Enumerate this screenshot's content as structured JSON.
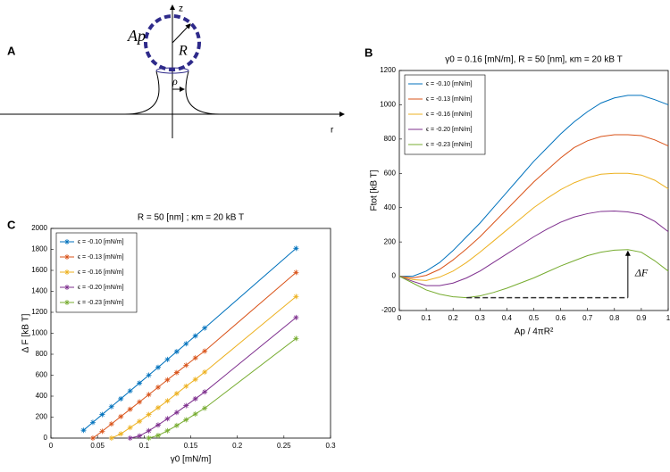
{
  "panel_a": {
    "label": "A",
    "z_axis": "z",
    "r_axis": "r",
    "area": "Ap",
    "radius": "R",
    "neck": "ρ"
  },
  "chart_data": [
    {
      "type": "line",
      "panel_label": "B",
      "title": "γ0 = 0.16 [mN/m], R = 50 [nm],  κm =  20 kB T",
      "x_label": "Ap / 4πR²",
      "y_label": "Ftot [kB T]",
      "x": [
        0,
        0.05,
        0.1,
        0.15,
        0.2,
        0.25,
        0.3,
        0.35,
        0.4,
        0.45,
        0.5,
        0.55,
        0.6,
        0.65,
        0.7,
        0.75,
        0.8,
        0.85,
        0.9,
        0.95,
        1
      ],
      "xlim": [
        0,
        1
      ],
      "xticks": [
        0,
        0.1,
        0.2,
        0.3,
        0.4,
        0.5,
        0.6,
        0.7,
        0.8,
        0.9,
        1
      ],
      "ylim": [
        -200,
        1200
      ],
      "yticks": [
        -200,
        0,
        200,
        400,
        600,
        800,
        1000,
        1200
      ],
      "legend": "upper left",
      "annotation": "ΔF",
      "series": [
        {
          "name": "ϵ = -0.10 [mN/m]",
          "color": "#0072bd",
          "values": [
            0,
            0,
            30,
            80,
            150,
            230,
            310,
            400,
            490,
            580,
            670,
            750,
            830,
            900,
            960,
            1010,
            1040,
            1055,
            1055,
            1030,
            1000
          ]
        },
        {
          "name": "ϵ = -0.13 [mN/m]",
          "color": "#d95319",
          "values": [
            0,
            -10,
            5,
            40,
            95,
            160,
            230,
            310,
            390,
            470,
            550,
            620,
            690,
            750,
            790,
            815,
            825,
            825,
            820,
            795,
            760
          ]
        },
        {
          "name": "ϵ = -0.16 [mN/m]",
          "color": "#edb120",
          "values": [
            0,
            -20,
            -25,
            -5,
            30,
            80,
            140,
            205,
            270,
            335,
            400,
            455,
            505,
            545,
            575,
            595,
            600,
            600,
            590,
            560,
            510
          ]
        },
        {
          "name": "ϵ = -0.20 [mN/m]",
          "color": "#7e2f8e",
          "values": [
            0,
            -30,
            -55,
            -55,
            -40,
            -10,
            30,
            80,
            130,
            180,
            230,
            275,
            315,
            345,
            365,
            378,
            380,
            375,
            360,
            320,
            260
          ]
        },
        {
          "name": "ϵ = -0.23 [mN/m]",
          "color": "#77ac30",
          "values": [
            0,
            -40,
            -80,
            -105,
            -120,
            -125,
            -115,
            -95,
            -70,
            -40,
            -10,
            25,
            60,
            90,
            120,
            140,
            152,
            155,
            140,
            90,
            30
          ]
        }
      ]
    },
    {
      "type": "line",
      "panel_label": "C",
      "marker": "star",
      "title": "R = 50 [nm] ;  κm =  20 kB T",
      "x_label": "γ0 [mN/m]",
      "y_label": "Δ F [kB T]",
      "xlim": [
        0,
        0.3
      ],
      "xticks": [
        0,
        0.05,
        0.1,
        0.15,
        0.2,
        0.25,
        0.3
      ],
      "ylim": [
        0,
        2000
      ],
      "yticks": [
        0,
        200,
        400,
        600,
        800,
        1000,
        1200,
        1400,
        1600,
        1800,
        2000
      ],
      "legend": "upper left",
      "series": [
        {
          "name": "ϵ = -0.10 [mN/m]",
          "color": "#0072bd",
          "x": [
            0.035,
            0.045,
            0.055,
            0.065,
            0.075,
            0.085,
            0.095,
            0.105,
            0.115,
            0.125,
            0.135,
            0.145,
            0.155,
            0.165,
            0.263
          ],
          "values": [
            75,
            150,
            225,
            300,
            375,
            450,
            525,
            600,
            675,
            750,
            825,
            900,
            975,
            1050,
            1810
          ]
        },
        {
          "name": "ϵ = -0.13 [mN/m]",
          "color": "#d95319",
          "x": [
            0.045,
            0.055,
            0.065,
            0.075,
            0.085,
            0.095,
            0.105,
            0.115,
            0.125,
            0.135,
            0.145,
            0.155,
            0.165,
            0.263
          ],
          "values": [
            0,
            65,
            135,
            205,
            275,
            345,
            415,
            485,
            555,
            625,
            695,
            765,
            830,
            1580
          ]
        },
        {
          "name": "ϵ = -0.16 [mN/m]",
          "color": "#edb120",
          "x": [
            0.065,
            0.075,
            0.085,
            0.095,
            0.105,
            0.115,
            0.125,
            0.135,
            0.145,
            0.155,
            0.165,
            0.263
          ],
          "values": [
            0,
            40,
            100,
            160,
            225,
            290,
            355,
            425,
            495,
            560,
            630,
            1350
          ]
        },
        {
          "name": "ϵ = -0.20 [mN/m]",
          "color": "#7e2f8e",
          "x": [
            0.085,
            0.095,
            0.105,
            0.115,
            0.125,
            0.135,
            0.145,
            0.155,
            0.165,
            0.263
          ],
          "values": [
            0,
            20,
            70,
            125,
            185,
            245,
            310,
            375,
            440,
            1150
          ]
        },
        {
          "name": "ϵ = -0.23 [mN/m]",
          "color": "#77ac30",
          "x": [
            0.105,
            0.115,
            0.125,
            0.135,
            0.145,
            0.155,
            0.165,
            0.263
          ],
          "values": [
            0,
            25,
            70,
            120,
            175,
            230,
            285,
            950
          ]
        }
      ]
    }
  ]
}
